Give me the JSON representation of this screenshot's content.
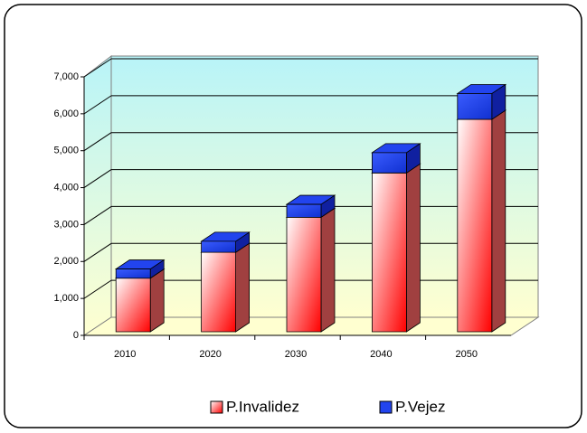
{
  "chart_data": {
    "type": "bar3d_stacked",
    "categories": [
      "2010",
      "2020",
      "2030",
      "2040",
      "2050"
    ],
    "series": [
      {
        "name": "P.Invalidez",
        "color": "#ff2020",
        "values": [
          1450,
          2150,
          3100,
          4300,
          5750
        ]
      },
      {
        "name": "P.Vejez",
        "color": "#2244ee",
        "values": [
          250,
          300,
          350,
          550,
          700
        ]
      }
    ],
    "ylim": [
      0,
      7000
    ],
    "yticks": [
      0,
      {
        "value": 1000,
        "label": "1,000"
      },
      {
        "value": 2000,
        "label": "2,000"
      },
      {
        "value": 3000,
        "label": "3,000"
      },
      {
        "value": 4000,
        "label": "4,000"
      },
      {
        "value": 5000,
        "label": "5,000"
      },
      {
        "value": 6000,
        "label": "6,000"
      },
      {
        "value": 7000,
        "label": "7,000"
      }
    ],
    "grid": true,
    "legend": "bottom"
  }
}
